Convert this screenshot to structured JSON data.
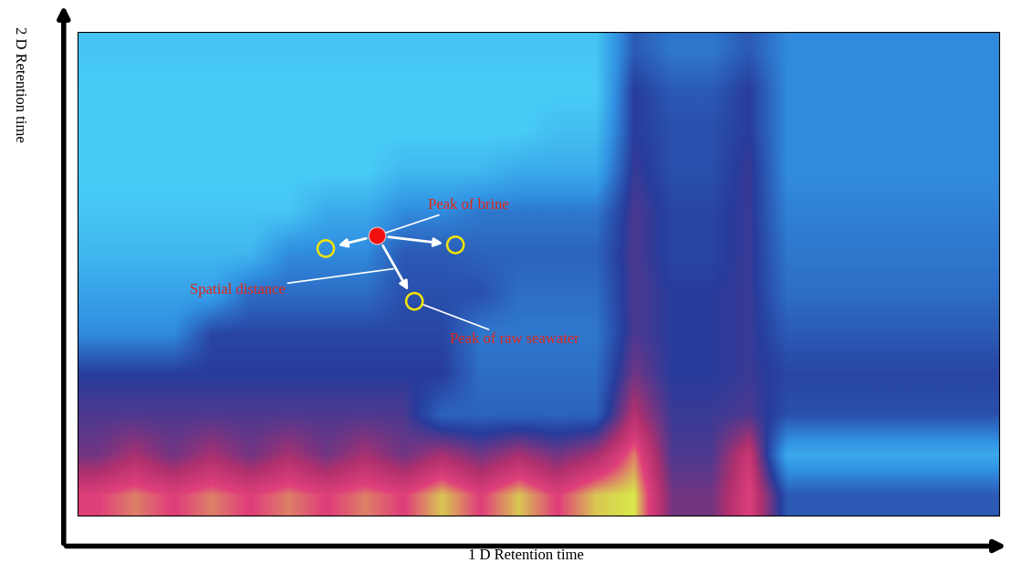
{
  "chart_data": {
    "type": "heatmap",
    "x_label": "1 D Retention time",
    "y_label": "2 D Retention time",
    "tick_labels": false,
    "grid": false,
    "xlim": [
      0,
      24
    ],
    "ylim": [
      0,
      12
    ],
    "cells": [
      [
        0.2,
        0.2,
        0.2,
        0.2,
        0.2,
        0.2,
        0.2,
        0.2,
        0.2,
        0.2,
        0.2,
        0.2,
        0.2,
        0.2,
        1.5,
        1.2,
        1.2,
        1.5,
        1.0,
        1.0,
        1.0,
        1.0,
        1.0,
        1.0
      ],
      [
        0.1,
        0.1,
        0.1,
        0.1,
        0.1,
        0.1,
        0.1,
        0.1,
        0.1,
        0.1,
        0.1,
        0.1,
        0.1,
        0.1,
        1.8,
        1.5,
        1.5,
        1.8,
        1.0,
        1.0,
        1.0,
        1.0,
        1.0,
        1.0
      ],
      [
        0.1,
        0.1,
        0.1,
        0.1,
        0.1,
        0.1,
        0.1,
        0.1,
        0.1,
        0.1,
        0.1,
        0.1,
        0.3,
        0.3,
        1.8,
        1.6,
        1.6,
        1.8,
        1.0,
        1.0,
        1.0,
        1.0,
        1.0,
        1.0
      ],
      [
        0.1,
        0.1,
        0.1,
        0.1,
        0.1,
        0.1,
        0.1,
        0.1,
        0.4,
        0.4,
        0.4,
        0.6,
        0.6,
        0.6,
        1.9,
        1.6,
        1.6,
        1.9,
        1.0,
        1.0,
        1.0,
        1.0,
        1.0,
        1.0
      ],
      [
        0.2,
        0.2,
        0.2,
        0.2,
        0.2,
        0.2,
        0.6,
        0.6,
        1.0,
        1.0,
        1.2,
        1.2,
        1.2,
        1.2,
        2.0,
        1.7,
        1.7,
        1.9,
        1.1,
        1.1,
        1.1,
        1.1,
        1.1,
        1.1
      ],
      [
        0.4,
        0.4,
        0.4,
        0.4,
        0.4,
        1.0,
        1.0,
        1.0,
        1.5,
        1.5,
        1.4,
        1.4,
        1.4,
        1.4,
        2.0,
        1.7,
        1.7,
        1.9,
        1.2,
        1.2,
        1.2,
        1.2,
        1.2,
        1.2
      ],
      [
        0.7,
        0.7,
        0.7,
        0.7,
        1.3,
        1.3,
        1.3,
        1.3,
        1.6,
        1.6,
        1.6,
        1.3,
        1.3,
        1.3,
        2.0,
        1.8,
        1.8,
        1.9,
        1.3,
        1.3,
        1.3,
        1.3,
        1.3,
        1.3
      ],
      [
        1.0,
        1.0,
        1.0,
        1.7,
        1.7,
        1.7,
        1.7,
        1.7,
        1.7,
        1.7,
        1.2,
        1.2,
        1.2,
        1.2,
        2.0,
        1.8,
        1.8,
        1.9,
        1.5,
        1.5,
        1.5,
        1.5,
        1.5,
        1.5
      ],
      [
        1.8,
        1.8,
        1.8,
        1.8,
        1.8,
        1.8,
        1.8,
        1.8,
        1.8,
        1.8,
        1.3,
        1.3,
        1.3,
        1.3,
        2.2,
        1.8,
        1.8,
        1.9,
        1.7,
        1.7,
        1.7,
        1.7,
        1.7,
        1.7
      ],
      [
        2.0,
        2.0,
        2.0,
        2.0,
        2.0,
        2.0,
        2.0,
        2.0,
        2.0,
        1.4,
        1.4,
        1.4,
        1.4,
        1.4,
        2.6,
        1.9,
        1.9,
        2.0,
        1.6,
        1.6,
        1.6,
        1.6,
        1.6,
        1.6
      ],
      [
        2.2,
        2.5,
        2.2,
        2.5,
        2.2,
        2.5,
        2.2,
        2.5,
        2.2,
        2.5,
        2.2,
        2.5,
        2.2,
        2.5,
        3.2,
        2.0,
        2.0,
        2.8,
        0.6,
        0.6,
        0.6,
        0.6,
        0.6,
        0.6
      ],
      [
        3.0,
        3.2,
        3.0,
        3.2,
        3.0,
        3.2,
        3.0,
        3.2,
        3.0,
        3.4,
        3.0,
        3.4,
        3.0,
        3.4,
        3.5,
        2.2,
        2.2,
        3.0,
        1.5,
        1.5,
        1.5,
        1.5,
        1.5,
        1.5
      ]
    ],
    "brine_peak": {
      "label": "Peak of brine",
      "x": 7.8,
      "y": 6.95
    },
    "seawater_peaks": {
      "label": "Peak of raw seawater",
      "points": [
        [
          6.46,
          6.63
        ],
        [
          9.84,
          6.72
        ],
        [
          8.77,
          5.32
        ]
      ]
    },
    "spatial_distance_label": "Spatial distance"
  }
}
